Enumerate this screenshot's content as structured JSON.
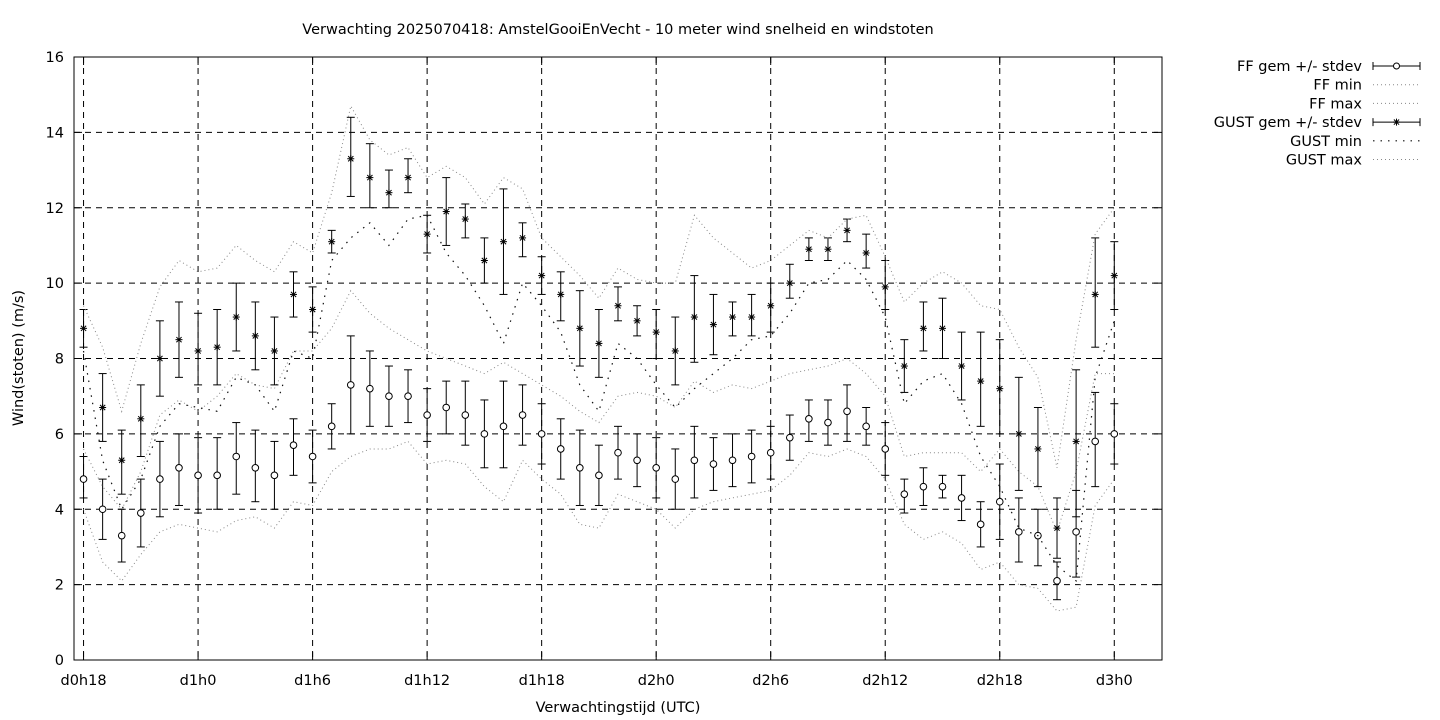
{
  "chart_data": {
    "type": "line",
    "title": "Verwachting 2025070418: AmstelGooiEnVecht - 10 meter wind snelheid en windstoten",
    "xlabel": "Verwachtingstijd (UTC)",
    "ylabel": "Wind(stoten) (m/s)",
    "ylim": [
      0,
      16
    ],
    "yticks": [
      0,
      2,
      4,
      6,
      8,
      10,
      12,
      14,
      16
    ],
    "xlim": [
      -0.25,
      28.25
    ],
    "x_tick_positions": [
      0,
      3,
      6,
      9,
      12,
      15,
      18,
      21,
      24,
      27
    ],
    "x_tick_labels": [
      "d0h18",
      "d1h0",
      "d1h6",
      "d1h12",
      "d1h18",
      "d2h0",
      "d2h6",
      "d2h12",
      "d2h18",
      "d3h0"
    ],
    "grid": true,
    "legend_position": "outside-top-right",
    "series": [
      {
        "name": "FF gem +/- stdev",
        "style": "errorbar-circle",
        "values": [
          4.8,
          4.0,
          3.3,
          3.9,
          4.8,
          5.1,
          4.9,
          4.9,
          5.4,
          5.1,
          4.9,
          5.7,
          5.4,
          6.2,
          7.3,
          7.2,
          7.0,
          7.0,
          6.5,
          6.7,
          6.5,
          6.0,
          6.2,
          6.5,
          6.0,
          5.6,
          5.1,
          4.9,
          5.5,
          5.3,
          5.1,
          4.8,
          5.3,
          5.2,
          5.3,
          5.4,
          5.5,
          5.9,
          6.4,
          6.3,
          6.6,
          6.2,
          5.6,
          4.4,
          4.6,
          4.6,
          4.3,
          3.6,
          4.2,
          3.4,
          3.3,
          2.1,
          3.4,
          5.8,
          6.0
        ],
        "low": [
          4.3,
          3.2,
          2.6,
          3.0,
          3.8,
          4.1,
          3.9,
          4.0,
          4.4,
          4.2,
          4.0,
          4.9,
          4.7,
          5.6,
          6.0,
          6.2,
          6.2,
          6.3,
          5.8,
          6.0,
          5.7,
          5.1,
          5.1,
          5.7,
          5.2,
          4.8,
          4.1,
          4.1,
          4.8,
          4.6,
          4.3,
          4.0,
          4.3,
          4.5,
          4.6,
          4.7,
          4.8,
          5.3,
          5.8,
          5.7,
          5.8,
          5.7,
          4.9,
          3.9,
          4.1,
          4.3,
          3.7,
          3.0,
          3.2,
          2.6,
          2.5,
          1.6,
          2.2,
          4.6,
          5.2
        ],
        "high": [
          5.4,
          4.8,
          4.0,
          4.8,
          5.8,
          6.0,
          5.9,
          5.9,
          6.3,
          6.1,
          5.8,
          6.4,
          6.1,
          6.8,
          8.6,
          8.2,
          7.8,
          7.7,
          7.2,
          7.4,
          7.4,
          6.9,
          7.4,
          7.3,
          6.8,
          6.4,
          6.1,
          5.7,
          6.2,
          6.0,
          5.9,
          5.6,
          6.2,
          5.9,
          6.0,
          6.1,
          6.2,
          6.5,
          6.9,
          6.9,
          7.3,
          6.7,
          6.3,
          4.8,
          5.1,
          4.9,
          4.9,
          4.2,
          5.2,
          4.3,
          4.0,
          2.6,
          4.5,
          7.1,
          6.8
        ]
      },
      {
        "name": "FF min",
        "style": "dotted",
        "values": [
          4.0,
          2.6,
          2.1,
          2.8,
          3.4,
          3.6,
          3.5,
          3.4,
          3.7,
          3.8,
          3.5,
          4.2,
          4.1,
          5.0,
          5.4,
          5.6,
          5.6,
          5.8,
          5.2,
          5.3,
          5.2,
          4.6,
          4.2,
          5.3,
          4.8,
          4.4,
          3.6,
          3.5,
          4.4,
          4.2,
          4.0,
          3.5,
          4.0,
          4.2,
          4.3,
          4.4,
          4.5,
          4.9,
          5.5,
          5.4,
          5.6,
          5.4,
          4.8,
          3.6,
          3.2,
          3.4,
          3.1,
          2.4,
          2.6,
          2.0,
          1.9,
          1.3,
          1.4,
          4.1,
          4.8
        ]
      },
      {
        "name": "FF max",
        "style": "dotted",
        "values": [
          5.6,
          4.6,
          4.0,
          5.0,
          6.5,
          6.9,
          6.6,
          7.0,
          7.6,
          7.3,
          7.2,
          8.2,
          8.2,
          8.8,
          9.8,
          9.2,
          8.8,
          8.5,
          8.2,
          8.0,
          7.8,
          7.6,
          7.9,
          7.6,
          7.3,
          7.0,
          6.6,
          6.3,
          7.0,
          7.1,
          7.0,
          6.7,
          7.4,
          7.1,
          7.3,
          7.2,
          7.4,
          7.6,
          7.7,
          7.8,
          8.0,
          7.6,
          7.0,
          5.4,
          5.5,
          5.5,
          5.5,
          5.0,
          5.6,
          5.0,
          4.6,
          3.4,
          5.0,
          7.6,
          7.6
        ]
      },
      {
        "name": "GUST gem +/- stdev",
        "style": "errorbar-star",
        "values": [
          8.8,
          6.7,
          5.3,
          6.4,
          8.0,
          8.5,
          8.2,
          8.3,
          9.1,
          8.6,
          8.2,
          9.7,
          9.3,
          11.1,
          13.3,
          12.8,
          12.4,
          12.8,
          11.3,
          11.9,
          11.7,
          10.6,
          11.1,
          11.2,
          10.2,
          9.7,
          8.8,
          8.4,
          9.4,
          9.0,
          8.7,
          8.2,
          9.1,
          8.9,
          9.1,
          9.1,
          9.4,
          10.0,
          10.9,
          10.9,
          11.4,
          10.8,
          9.9,
          7.8,
          8.8,
          8.8,
          7.8,
          7.4,
          7.2,
          6.0,
          5.6,
          3.5,
          5.8,
          9.7,
          10.2
        ],
        "low": [
          8.3,
          5.8,
          4.4,
          5.4,
          7.0,
          7.5,
          7.3,
          7.3,
          8.2,
          7.7,
          7.3,
          9.1,
          8.7,
          10.8,
          12.3,
          12.0,
          12.0,
          12.4,
          10.8,
          11.0,
          11.2,
          10.0,
          9.7,
          10.7,
          9.7,
          9.0,
          7.8,
          7.5,
          9.0,
          8.6,
          8.0,
          7.3,
          7.9,
          8.1,
          8.6,
          8.6,
          8.7,
          9.6,
          10.6,
          10.6,
          11.1,
          10.4,
          9.3,
          7.1,
          8.2,
          8.0,
          6.9,
          6.2,
          6.0,
          4.5,
          4.6,
          2.7,
          3.8,
          8.3,
          9.3
        ],
        "high": [
          9.3,
          7.6,
          6.1,
          7.3,
          9.0,
          9.5,
          9.2,
          9.3,
          10.0,
          9.5,
          9.1,
          10.3,
          9.9,
          11.4,
          14.4,
          13.7,
          13.0,
          13.3,
          11.8,
          12.8,
          12.1,
          11.2,
          12.5,
          11.6,
          10.7,
          10.3,
          9.8,
          9.3,
          9.9,
          9.4,
          9.3,
          9.1,
          10.2,
          9.7,
          9.5,
          9.7,
          10.0,
          10.5,
          11.2,
          11.2,
          11.7,
          11.3,
          10.6,
          8.5,
          9.5,
          9.6,
          8.7,
          8.7,
          8.5,
          7.5,
          6.7,
          4.3,
          7.7,
          11.2,
          11.1
        ]
      },
      {
        "name": "GUST min",
        "style": "dotted-coarse",
        "values": [
          8.2,
          5.3,
          4.0,
          4.8,
          6.2,
          6.8,
          6.7,
          6.6,
          7.5,
          7.3,
          6.6,
          8.2,
          8.0,
          10.6,
          11.2,
          11.6,
          11.0,
          11.7,
          11.8,
          10.8,
          10.2,
          9.4,
          8.4,
          10.0,
          9.4,
          8.7,
          7.3,
          6.6,
          8.4,
          8.0,
          7.3,
          6.7,
          7.2,
          7.6,
          8.0,
          8.5,
          8.6,
          9.2,
          10.0,
          10.1,
          10.6,
          10.1,
          9.1,
          6.8,
          7.4,
          7.6,
          6.8,
          5.4,
          4.6,
          3.5,
          3.3,
          2.5,
          2.1,
          7.5,
          9.0
        ]
      },
      {
        "name": "GUST max",
        "style": "dotted",
        "values": [
          9.4,
          8.3,
          6.6,
          8.4,
          9.9,
          10.6,
          10.3,
          10.4,
          11.0,
          10.6,
          10.3,
          11.1,
          10.8,
          12.4,
          14.7,
          13.8,
          13.4,
          13.6,
          12.8,
          13.1,
          12.8,
          12.1,
          12.8,
          12.5,
          11.2,
          10.7,
          10.2,
          9.6,
          10.4,
          10.1,
          10.0,
          10.0,
          11.8,
          11.2,
          10.8,
          10.4,
          10.6,
          11.0,
          11.4,
          11.2,
          11.7,
          11.8,
          10.7,
          9.5,
          10.0,
          10.3,
          10.0,
          9.4,
          9.3,
          8.3,
          7.5,
          5.1,
          8.5,
          11.3,
          12.0
        ]
      }
    ]
  }
}
